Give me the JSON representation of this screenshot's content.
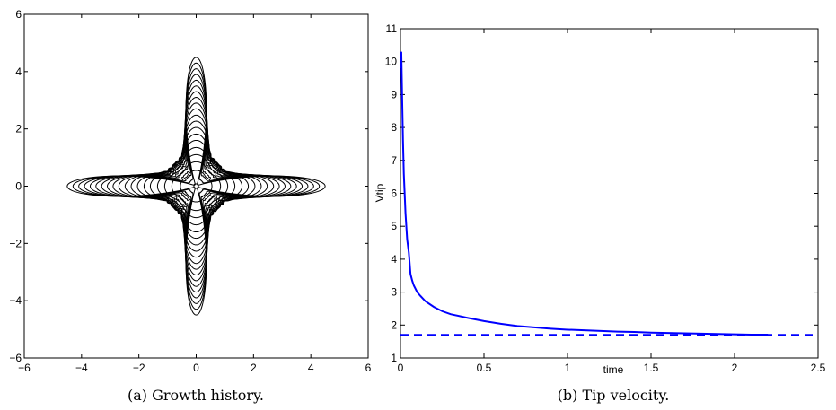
{
  "chart_data": [
    {
      "type": "line",
      "caption": "(a)  Growth history.",
      "xlim": [
        -6,
        6
      ],
      "ylim": [
        -6,
        6
      ],
      "xticks": [
        -6,
        -4,
        -2,
        0,
        2,
        4,
        6
      ],
      "yticks": [
        -6,
        -4,
        -2,
        0,
        2,
        4,
        6
      ],
      "xtick_labels": [
        "−6",
        "−4",
        "−2",
        "0",
        "2",
        "4",
        "6"
      ],
      "ytick_labels": [
        "−6",
        "−4",
        "−2",
        "0",
        "2",
        "4",
        "6"
      ],
      "contour_tip_radii": [
        0.08,
        0.55,
        0.85,
        1.1,
        1.35,
        1.6,
        1.82,
        2.05,
        2.27,
        2.48,
        2.7,
        2.9,
        3.1,
        3.3,
        3.5,
        3.7,
        3.9,
        4.1,
        4.3,
        4.5
      ],
      "line_color": "#000000"
    },
    {
      "type": "line",
      "caption": "(b)  Tip velocity.",
      "xlabel": "time",
      "ylabel": "Vtip",
      "xlim": [
        0,
        2.5
      ],
      "ylim": [
        1,
        11
      ],
      "xticks": [
        0,
        0.5,
        1,
        1.5,
        2,
        2.5
      ],
      "yticks": [
        1,
        2,
        3,
        4,
        5,
        6,
        7,
        8,
        9,
        10,
        11
      ],
      "xtick_labels": [
        "0",
        "0.5",
        "1",
        "1.5",
        "2",
        "2.5"
      ],
      "ytick_labels": [
        "1",
        "2",
        "3",
        "4",
        "5",
        "6",
        "7",
        "8",
        "9",
        "10",
        "11"
      ],
      "series": [
        {
          "style": "solid",
          "color": "#0000ff",
          "x": [
            0,
            0.005,
            0.01,
            0.015,
            0.02,
            0.03,
            0.04,
            0.05,
            0.06,
            0.07,
            0.08,
            0.1,
            0.12,
            0.15,
            0.2,
            0.25,
            0.3,
            0.4,
            0.5,
            0.6,
            0.7,
            0.8,
            0.9,
            1.0,
            1.1,
            1.2,
            1.3,
            1.4,
            1.5,
            1.6,
            1.7,
            1.8,
            1.9,
            2.0,
            2.1,
            2.2
          ],
          "y": [
            9.8,
            10.3,
            8.9,
            7.6,
            6.6,
            5.4,
            4.6,
            4.2,
            3.55,
            3.35,
            3.2,
            3.0,
            2.88,
            2.72,
            2.55,
            2.42,
            2.33,
            2.22,
            2.12,
            2.04,
            1.97,
            1.93,
            1.89,
            1.86,
            1.84,
            1.82,
            1.8,
            1.79,
            1.77,
            1.76,
            1.75,
            1.74,
            1.73,
            1.72,
            1.71,
            1.71
          ]
        },
        {
          "style": "dashed",
          "color": "#0000ff",
          "x": [
            0,
            2.5
          ],
          "y": [
            1.7,
            1.7
          ]
        }
      ]
    }
  ]
}
